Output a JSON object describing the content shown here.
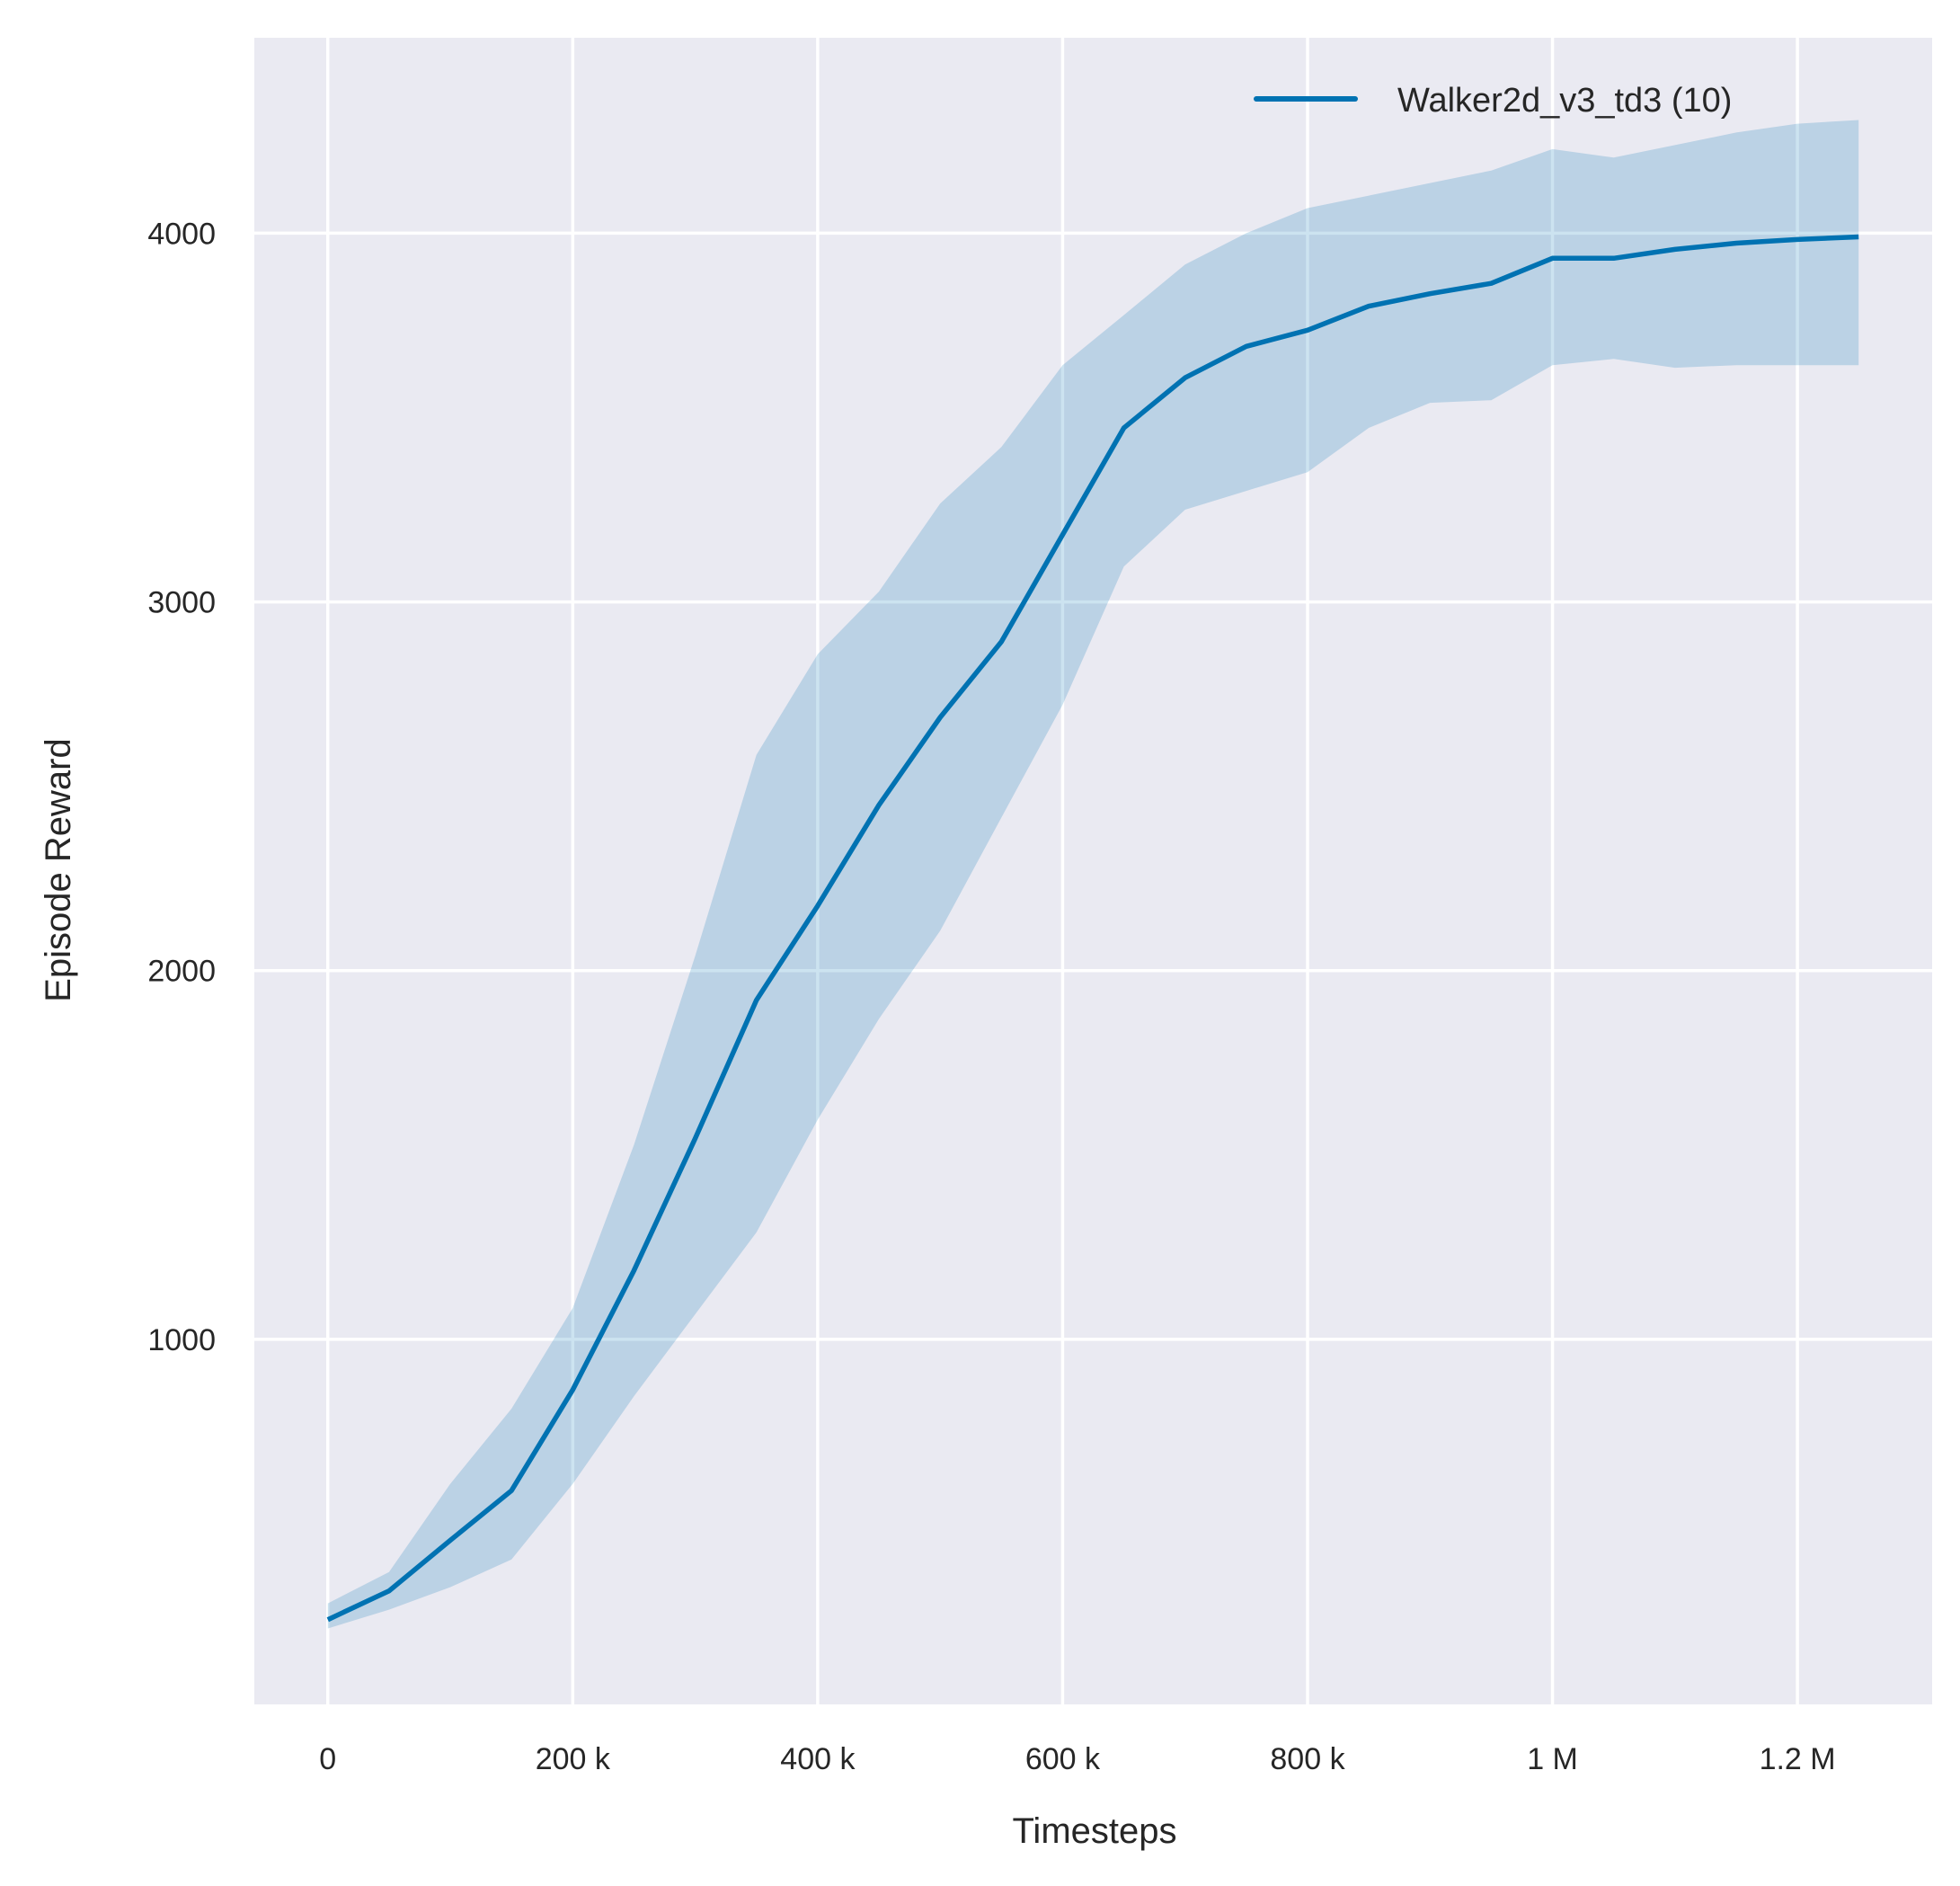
{
  "chart_data": {
    "type": "line",
    "title": "",
    "xlabel": "Timesteps",
    "ylabel": "Episode Reward",
    "xlim": [
      -60000,
      1310000
    ],
    "ylim": [
      10,
      4530
    ],
    "grid": true,
    "background_color": "#eaeaf2",
    "line_color": "#0072b2",
    "band_color": "#0072b2",
    "legend_position": "top-right",
    "x_ticks": [
      0,
      200000,
      400000,
      600000,
      800000,
      1000000,
      1200000
    ],
    "x_tick_labels": [
      "0",
      "200 k",
      "400 k",
      "600 k",
      "800 k",
      "1 M",
      "1.2 M"
    ],
    "y_ticks": [
      1000,
      2000,
      3000,
      4000
    ],
    "y_tick_labels": [
      "1000",
      "2000",
      "3000",
      "4000"
    ],
    "series": [
      {
        "name": "Walker2d_v3_td3 (10)",
        "x": [
          0,
          50000,
          100000,
          150000,
          200000,
          250000,
          300000,
          350000,
          400000,
          450000,
          500000,
          550000,
          600000,
          650000,
          700000,
          750000,
          800000,
          850000,
          900000,
          950000,
          1000000,
          1050000,
          1100000,
          1150000,
          1200000,
          1250000
        ],
        "mean": [
          240,
          318,
          455,
          590,
          863,
          1187,
          1545,
          1920,
          2176,
          2449,
          2687,
          2892,
          3182,
          3472,
          3608,
          3693,
          3737,
          3802,
          3836,
          3864,
          3932,
          3932,
          3956,
          3973,
          3983,
          3990
        ],
        "upper": [
          284,
          369,
          608,
          812,
          1085,
          1528,
          2040,
          2585,
          2858,
          3028,
          3267,
          3420,
          3642,
          3778,
          3915,
          4000,
          4068,
          4102,
          4136,
          4170,
          4228,
          4205,
          4239,
          4273,
          4297,
          4307
        ],
        "lower": [
          216,
          267,
          328,
          403,
          608,
          846,
          1068,
          1290,
          1596,
          1869,
          2108,
          2415,
          2721,
          3096,
          3250,
          3301,
          3352,
          3472,
          3540,
          3547,
          3642,
          3659,
          3635,
          3642,
          3642,
          3642
        ]
      }
    ]
  }
}
